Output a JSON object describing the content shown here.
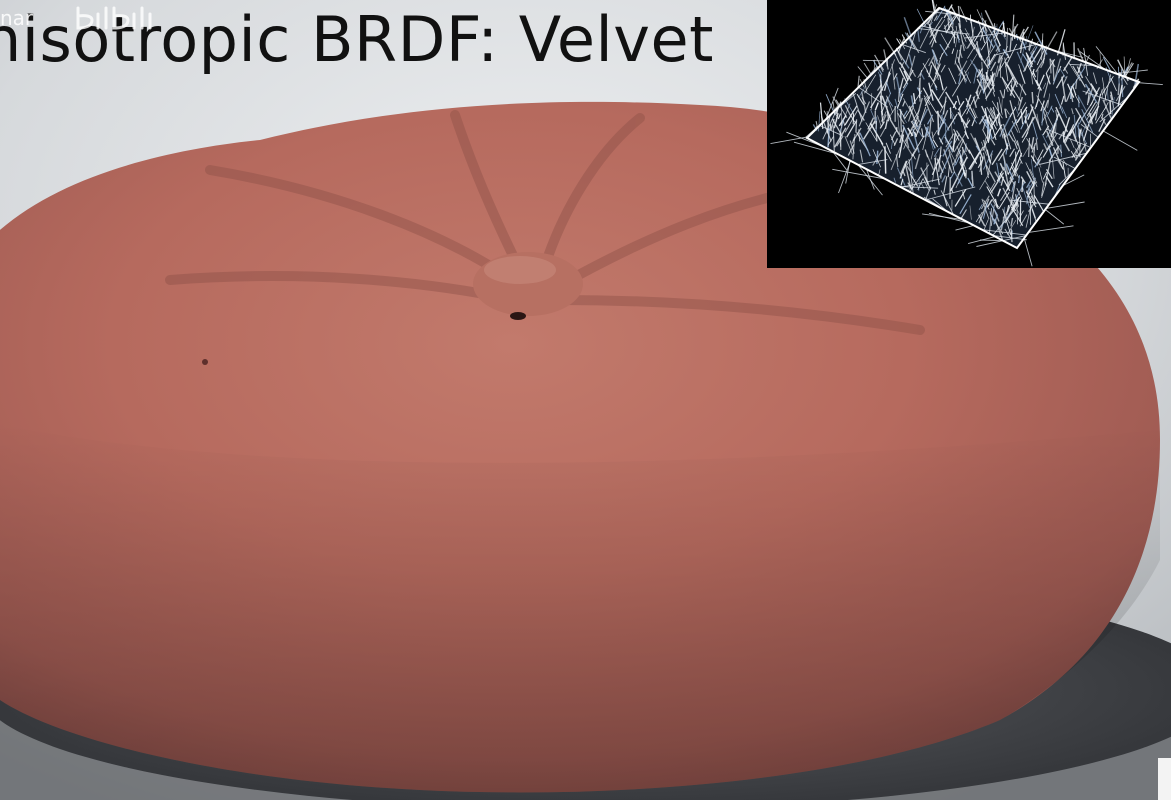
{
  "slide": {
    "title": "nisotropic BRDF: Velvet",
    "watermark_text": "nar",
    "watermark_logo": "bilibili"
  },
  "colors": {
    "velvet": "#b86a5e",
    "background": "#d9dcdf",
    "inset_background": "#000000",
    "fiber": "#e8edf2"
  },
  "icons": {
    "watermark_logo": "bilibili-logo-icon"
  }
}
